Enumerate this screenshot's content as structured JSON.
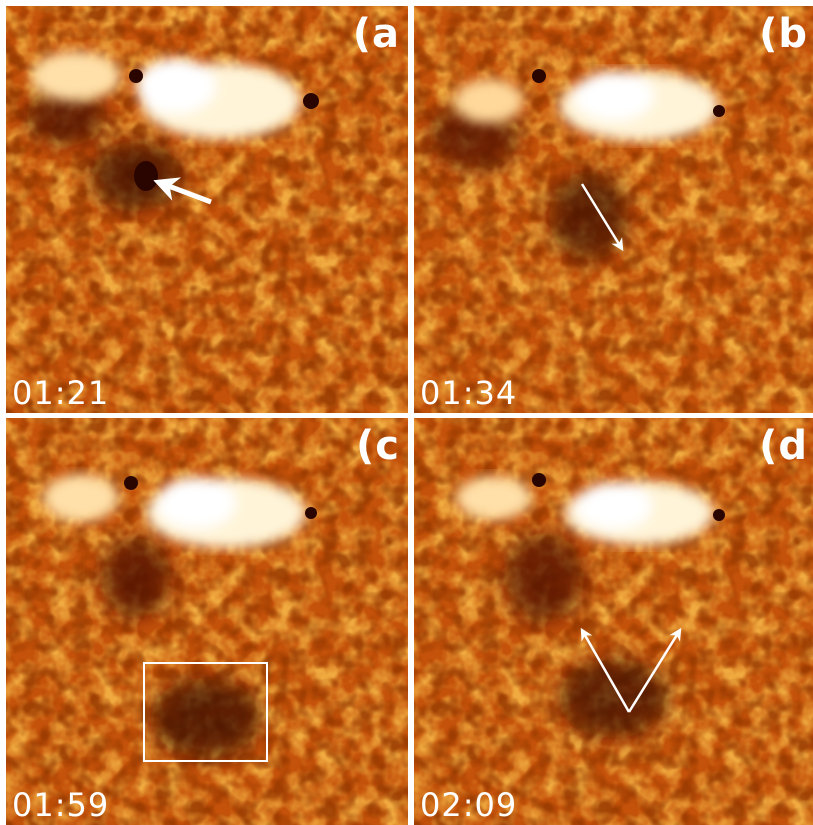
{
  "panels": [
    {
      "label": "(a",
      "time": "01:21"
    },
    {
      "label": "(b",
      "time": "01:34"
    },
    {
      "label": "(c",
      "time": "01:59"
    },
    {
      "label": "(d",
      "time": "02:09"
    }
  ],
  "colors": {
    "background": "#c4520a",
    "bright": "#fff4d8",
    "dark": "#3a0800",
    "mid": "#e07a1e",
    "annotation": "#ffffff"
  }
}
